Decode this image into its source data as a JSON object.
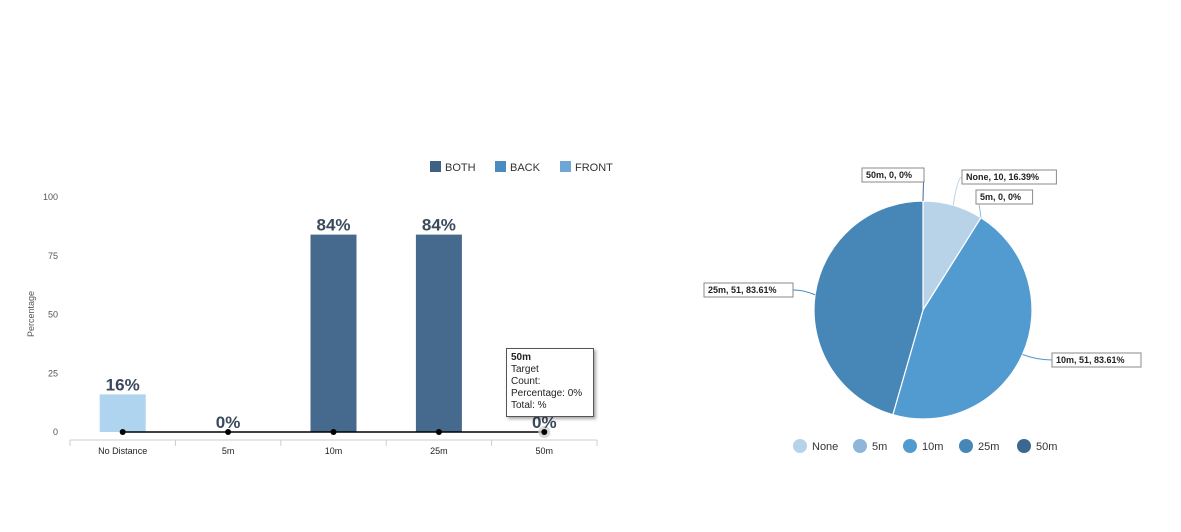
{
  "chart_data": [
    {
      "type": "bar",
      "title": "",
      "xlabel": "",
      "ylabel": "Percentage",
      "ylim": [
        0,
        100
      ],
      "yticks": [
        0,
        25,
        50,
        75,
        100
      ],
      "categories": [
        "No Distance",
        "5m",
        "10m",
        "25m",
        "50m"
      ],
      "bars": [
        {
          "value": 16,
          "label": "16%",
          "color": "#aed4f0"
        },
        {
          "value": 0,
          "label": "0%",
          "color": "#aed4f0"
        },
        {
          "value": 84,
          "label": "84%",
          "color": "#466a8d"
        },
        {
          "value": 84,
          "label": "84%",
          "color": "#466a8d"
        },
        {
          "value": 0,
          "label": "0%",
          "color": "#466a8d"
        }
      ],
      "line_series": {
        "values": [
          0,
          0,
          0,
          0,
          0
        ],
        "color": "#000000"
      },
      "legend": {
        "placement": "top-right",
        "items": [
          {
            "name": "BOTH",
            "color": "#3e6184"
          },
          {
            "name": "BACK",
            "color": "#4b8cc0"
          },
          {
            "name": "FRONT",
            "color": "#6fa6d6"
          }
        ]
      },
      "tooltip": {
        "title": "50m",
        "lines": [
          "Target",
          "Count:",
          "Percentage: 0%",
          "Total: %"
        ]
      }
    },
    {
      "type": "pie",
      "title": "",
      "slices": [
        {
          "name": "None",
          "count": 10,
          "percent": 16.39,
          "label": "None, 10, 16.39%",
          "color": "#b8d2e8"
        },
        {
          "name": "5m",
          "count": 0,
          "percent": 0,
          "label": "5m, 0, 0%",
          "color": "#8fb6da"
        },
        {
          "name": "10m",
          "count": 51,
          "percent": 83.61,
          "label": "10m, 51, 83.61%",
          "color": "#519bd0"
        },
        {
          "name": "25m",
          "count": 51,
          "percent": 83.61,
          "label": "25m, 51, 83.61%",
          "color": "#4687b8"
        },
        {
          "name": "50m",
          "count": 0,
          "percent": 0,
          "label": "50m, 0, 0%",
          "color": "#3b6890"
        }
      ],
      "legend": {
        "placement": "bottom"
      }
    }
  ]
}
